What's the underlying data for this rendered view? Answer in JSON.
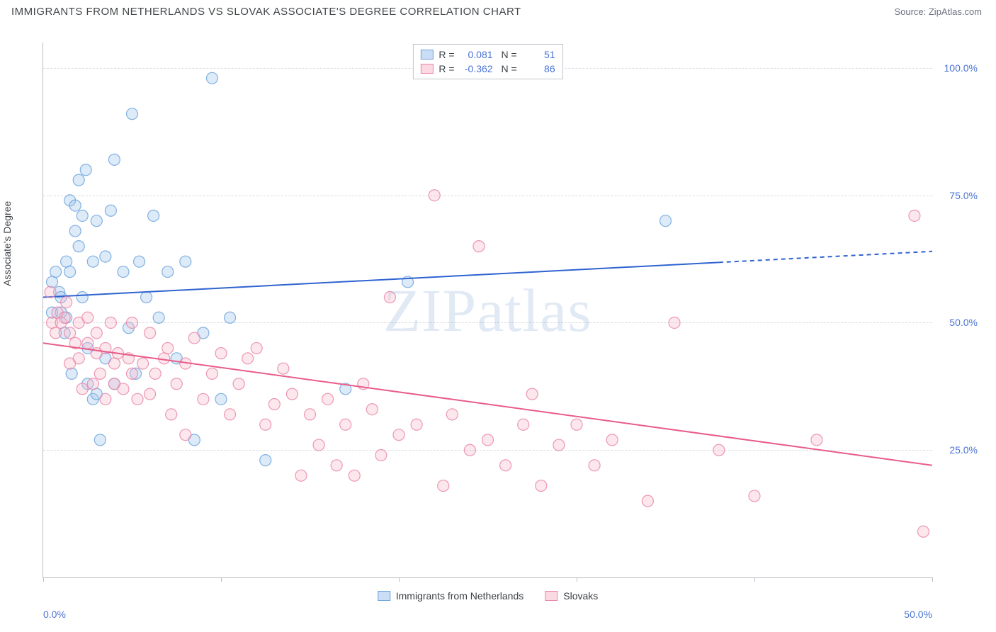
{
  "title": "IMMIGRANTS FROM NETHERLANDS VS SLOVAK ASSOCIATE'S DEGREE CORRELATION CHART",
  "source": "Source: ZipAtlas.com",
  "ylabel": "Associate's Degree",
  "watermark": "ZIPatlas",
  "chart": {
    "type": "scatter",
    "xlim": [
      0,
      50
    ],
    "ylim": [
      0,
      105
    ],
    "xticks": [
      0,
      10,
      20,
      30,
      40,
      50
    ],
    "xtick_labels": [
      "0.0%",
      "",
      "",
      "",
      "",
      "50.0%"
    ],
    "yticks": [
      25,
      50,
      75,
      100
    ],
    "ytick_labels": [
      "25.0%",
      "50.0%",
      "75.0%",
      "100.0%"
    ],
    "grid_color": "#d9dce0",
    "axis_color": "#b8bcc2",
    "background_color": "#ffffff",
    "marker_radius": 8,
    "marker_fill_opacity": 0.35,
    "marker_stroke_opacity": 0.85,
    "line_width": 2,
    "series": [
      {
        "id": "netherlands",
        "label": "Immigrants from Netherlands",
        "color_fill": "#9fc3ea",
        "color_stroke": "#6fa4dd",
        "line_color": "#2f63d0",
        "R": "0.081",
        "N": "51",
        "trend": {
          "x1": 0,
          "y1": 55,
          "x2": 50,
          "y2": 64,
          "dash_from_x": 38
        },
        "points": [
          [
            0.5,
            52
          ],
          [
            0.5,
            58
          ],
          [
            0.7,
            60
          ],
          [
            0.9,
            56
          ],
          [
            1.0,
            55
          ],
          [
            1.0,
            52
          ],
          [
            1.2,
            48
          ],
          [
            1.3,
            62
          ],
          [
            1.3,
            51
          ],
          [
            1.5,
            60
          ],
          [
            1.5,
            74
          ],
          [
            1.6,
            40
          ],
          [
            1.8,
            68
          ],
          [
            1.8,
            73
          ],
          [
            2.0,
            78
          ],
          [
            2.0,
            65
          ],
          [
            2.2,
            71
          ],
          [
            2.2,
            55
          ],
          [
            2.4,
            80
          ],
          [
            2.5,
            45
          ],
          [
            2.5,
            38
          ],
          [
            2.8,
            62
          ],
          [
            2.8,
            35
          ],
          [
            3.0,
            70
          ],
          [
            3.0,
            36
          ],
          [
            3.2,
            27
          ],
          [
            3.5,
            63
          ],
          [
            3.5,
            43
          ],
          [
            3.8,
            72
          ],
          [
            4.0,
            82
          ],
          [
            4.0,
            38
          ],
          [
            4.5,
            60
          ],
          [
            4.8,
            49
          ],
          [
            5.0,
            91
          ],
          [
            5.2,
            40
          ],
          [
            5.4,
            62
          ],
          [
            5.8,
            55
          ],
          [
            6.2,
            71
          ],
          [
            6.5,
            51
          ],
          [
            7.0,
            60
          ],
          [
            7.5,
            43
          ],
          [
            8.0,
            62
          ],
          [
            8.5,
            27
          ],
          [
            9.0,
            48
          ],
          [
            9.5,
            98
          ],
          [
            10.0,
            35
          ],
          [
            10.5,
            51
          ],
          [
            12.5,
            23
          ],
          [
            17.0,
            37
          ],
          [
            20.5,
            58
          ],
          [
            35.0,
            70
          ]
        ]
      },
      {
        "id": "slovaks",
        "label": "Slovaks",
        "color_fill": "#f6b9cc",
        "color_stroke": "#ea86a8",
        "line_color": "#e85c89",
        "R": "-0.362",
        "N": "86",
        "trend": {
          "x1": 0,
          "y1": 46,
          "x2": 50,
          "y2": 22,
          "dash_from_x": null
        },
        "points": [
          [
            0.4,
            56
          ],
          [
            0.5,
            50
          ],
          [
            0.7,
            48
          ],
          [
            0.8,
            52
          ],
          [
            1.0,
            50
          ],
          [
            1.2,
            51
          ],
          [
            1.3,
            54
          ],
          [
            1.5,
            48
          ],
          [
            1.5,
            42
          ],
          [
            1.8,
            46
          ],
          [
            2.0,
            50
          ],
          [
            2.0,
            43
          ],
          [
            2.2,
            37
          ],
          [
            2.5,
            46
          ],
          [
            2.5,
            51
          ],
          [
            2.8,
            38
          ],
          [
            3.0,
            44
          ],
          [
            3.0,
            48
          ],
          [
            3.2,
            40
          ],
          [
            3.5,
            35
          ],
          [
            3.5,
            45
          ],
          [
            3.8,
            50
          ],
          [
            4.0,
            42
          ],
          [
            4.0,
            38
          ],
          [
            4.2,
            44
          ],
          [
            4.5,
            37
          ],
          [
            4.8,
            43
          ],
          [
            5.0,
            40
          ],
          [
            5.0,
            50
          ],
          [
            5.3,
            35
          ],
          [
            5.6,
            42
          ],
          [
            6.0,
            48
          ],
          [
            6.0,
            36
          ],
          [
            6.3,
            40
          ],
          [
            6.8,
            43
          ],
          [
            7.0,
            45
          ],
          [
            7.2,
            32
          ],
          [
            7.5,
            38
          ],
          [
            8.0,
            42
          ],
          [
            8.0,
            28
          ],
          [
            8.5,
            47
          ],
          [
            9.0,
            35
          ],
          [
            9.5,
            40
          ],
          [
            10.0,
            44
          ],
          [
            10.5,
            32
          ],
          [
            11.0,
            38
          ],
          [
            11.5,
            43
          ],
          [
            12.0,
            45
          ],
          [
            12.5,
            30
          ],
          [
            13.0,
            34
          ],
          [
            13.5,
            41
          ],
          [
            14.0,
            36
          ],
          [
            14.5,
            20
          ],
          [
            15.0,
            32
          ],
          [
            15.5,
            26
          ],
          [
            16.0,
            35
          ],
          [
            16.5,
            22
          ],
          [
            17.0,
            30
          ],
          [
            17.5,
            20
          ],
          [
            18.0,
            38
          ],
          [
            18.5,
            33
          ],
          [
            19.0,
            24
          ],
          [
            19.5,
            55
          ],
          [
            20.0,
            28
          ],
          [
            21.0,
            30
          ],
          [
            22.0,
            75
          ],
          [
            22.5,
            18
          ],
          [
            23.0,
            32
          ],
          [
            24.0,
            25
          ],
          [
            24.5,
            65
          ],
          [
            25.0,
            27
          ],
          [
            26.0,
            22
          ],
          [
            27.0,
            30
          ],
          [
            27.5,
            36
          ],
          [
            28.0,
            18
          ],
          [
            29.0,
            26
          ],
          [
            30.0,
            30
          ],
          [
            31.0,
            22
          ],
          [
            32.0,
            27
          ],
          [
            34.0,
            15
          ],
          [
            35.5,
            50
          ],
          [
            38.0,
            25
          ],
          [
            40.0,
            16
          ],
          [
            43.5,
            27
          ],
          [
            49.0,
            71
          ],
          [
            49.5,
            9
          ]
        ]
      }
    ]
  }
}
